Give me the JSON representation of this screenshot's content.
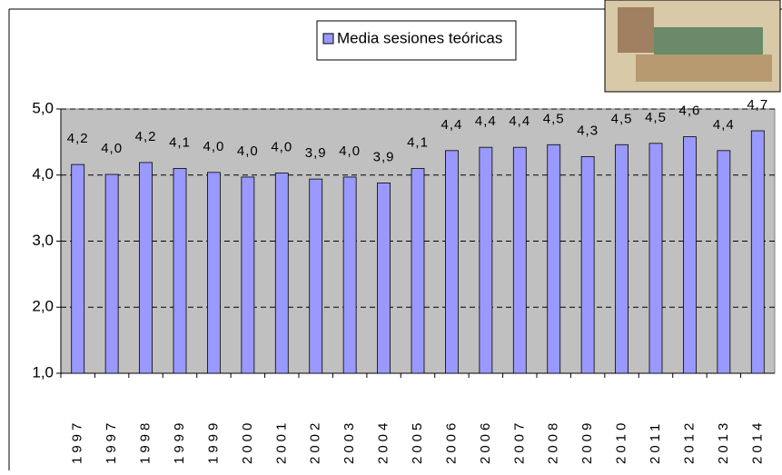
{
  "chart_data": {
    "type": "bar",
    "legend": "Media sesiones teóricas",
    "categories": [
      "1997",
      "1997",
      "1998",
      "1999",
      "1999",
      "2000",
      "2001",
      "2002",
      "2003",
      "2004",
      "2005",
      "2006",
      "2006",
      "2007",
      "2008",
      "2009",
      "2010",
      "2011",
      "2012",
      "2013",
      "2014"
    ],
    "values": [
      4.16,
      4.01,
      4.19,
      4.1,
      4.04,
      3.97,
      4.03,
      3.94,
      3.97,
      3.88,
      4.1,
      4.37,
      4.42,
      4.42,
      4.46,
      4.28,
      4.46,
      4.48,
      4.58,
      4.37,
      4.67
    ],
    "value_labels": [
      "4,2",
      "4,0",
      "4,2",
      "4,1",
      "4,0",
      "4,0",
      "4,0",
      "3,9",
      "4,0",
      "3,9",
      "4,1",
      "4,4",
      "4,4",
      "4,4",
      "4,5",
      "4,3",
      "4,5",
      "4,5",
      "4,6",
      "4,4",
      "4,7"
    ],
    "color": "#9999ff",
    "ylim": [
      1,
      5
    ],
    "yticks": [
      {
        "value": 1,
        "label": "1,0"
      },
      {
        "value": 2,
        "label": "2,0"
      },
      {
        "value": 3,
        "label": "3,0"
      },
      {
        "value": 4,
        "label": "4,0"
      },
      {
        "value": 5,
        "label": "5,0"
      }
    ],
    "grid": true
  }
}
